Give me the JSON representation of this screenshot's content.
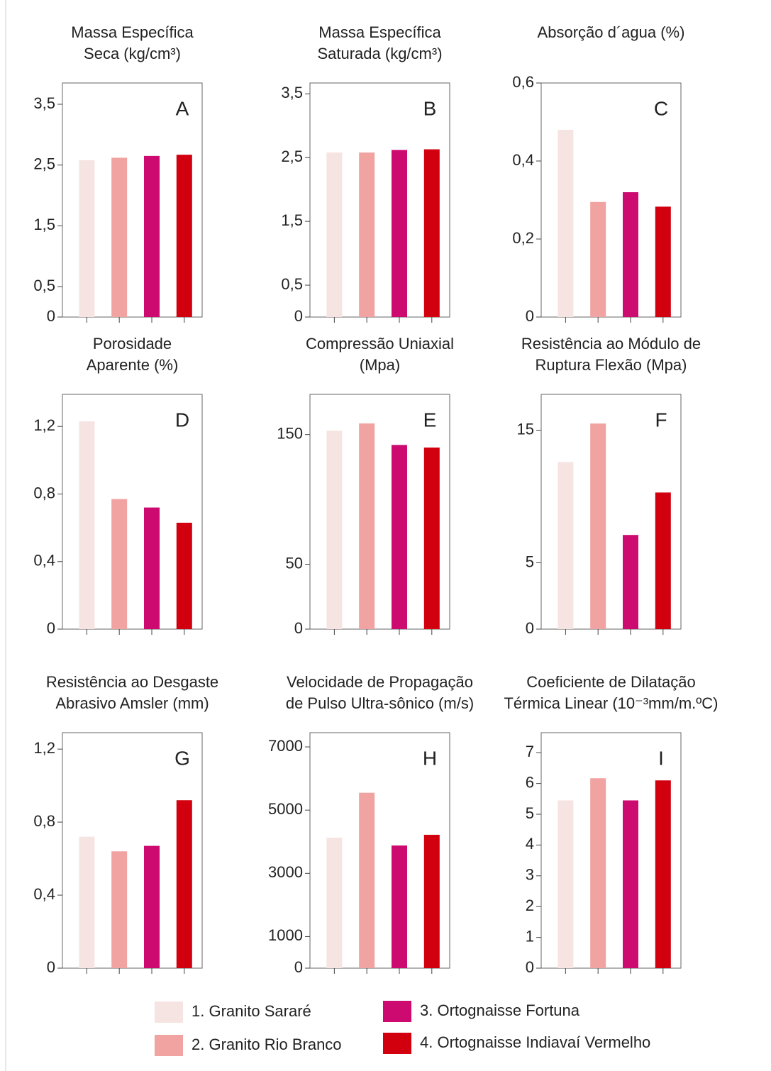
{
  "legend": {
    "items": [
      {
        "name": "1. Granito Sararé",
        "color": "#f6e4e2"
      },
      {
        "name": "2. Granito Rio Branco",
        "color": "#f0a3a0"
      },
      {
        "name": "3. Ortognaisse Fortuna",
        "color": "#cc0a70"
      },
      {
        "name": "4. Ortognaisse Indiavaí Vermelho",
        "color": "#d2000f"
      }
    ]
  },
  "chart_data": [
    {
      "type": "bar",
      "title": [
        "Massa Específica",
        "Seca (kg/cm³)"
      ],
      "label": "A",
      "values": [
        2.58,
        2.62,
        2.65,
        2.67
      ],
      "ylim": [
        0,
        3.85
      ],
      "yticks": [
        0,
        {
          "value": 0.5,
          "label": "0,5"
        },
        {
          "value": 1.5,
          "label": "1,5"
        },
        {
          "value": 2.5,
          "label": "2,5"
        },
        {
          "value": 3.5,
          "label": "3,5"
        }
      ]
    },
    {
      "type": "bar",
      "title": [
        "Massa Específica",
        "Saturada (kg/cm³)"
      ],
      "label": "B",
      "values": [
        2.58,
        2.58,
        2.62,
        2.63
      ],
      "ylim": [
        0,
        3.67
      ],
      "yticks": [
        0,
        {
          "value": 0.5,
          "label": "0,5"
        },
        {
          "value": 1.5,
          "label": "1,5"
        },
        {
          "value": 2.5,
          "label": "2,5"
        },
        {
          "value": 3.5,
          "label": "3,5"
        }
      ]
    },
    {
      "type": "bar",
      "title": [
        "Absorção d´agua (%)"
      ],
      "label": "C",
      "values": [
        0.48,
        0.295,
        0.32,
        0.283
      ],
      "ylim": [
        0,
        0.6
      ],
      "yticks": [
        0,
        {
          "value": 0.2,
          "label": "0,2"
        },
        {
          "value": 0.4,
          "label": "0,4"
        },
        {
          "value": 0.6,
          "label": "0,6"
        }
      ]
    },
    {
      "type": "bar",
      "title": [
        "Porosidade",
        "Aparente (%)"
      ],
      "label": "D",
      "values": [
        1.23,
        0.77,
        0.72,
        0.63
      ],
      "ylim": [
        0,
        1.39
      ],
      "yticks": [
        0,
        {
          "value": 0.4,
          "label": "0,4"
        },
        {
          "value": 0.8,
          "label": "0,8"
        },
        {
          "value": 1.2,
          "label": "1,2"
        }
      ]
    },
    {
      "type": "bar",
      "title": [
        "Compressão Uniaxial",
        "(Mpa)"
      ],
      "label": "E",
      "values": [
        153,
        158.6,
        142,
        140
      ],
      "ylim": [
        0,
        181
      ],
      "yticks": [
        0,
        50,
        150
      ]
    },
    {
      "type": "bar",
      "title": [
        "Resistência ao Módulo de",
        "Ruptura Flexão (Mpa)"
      ],
      "label": "F",
      "values": [
        12.6,
        15.5,
        7.1,
        10.3
      ],
      "ylim": [
        0,
        17.7
      ],
      "yticks": [
        0,
        5,
        15
      ]
    },
    {
      "type": "bar",
      "title": [
        "Resistência ao Desgaste",
        "Abrasivo Amsler (mm)"
      ],
      "label": "G",
      "values": [
        0.72,
        0.64,
        0.67,
        0.92
      ],
      "ylim": [
        0,
        1.29
      ],
      "yticks": [
        0,
        {
          "value": 0.4,
          "label": "0,4"
        },
        {
          "value": 0.8,
          "label": "0,8"
        },
        {
          "value": 1.2,
          "label": "1,2"
        }
      ]
    },
    {
      "type": "bar",
      "title": [
        "Velocidade de Propagação",
        "de Pulso Ultra-sônico (m/s)"
      ],
      "label": "H",
      "values": [
        4130,
        5550,
        3880,
        4220
      ],
      "ylim": [
        0,
        7450
      ],
      "yticks": [
        0,
        1000,
        3000,
        5000,
        7000
      ]
    },
    {
      "type": "bar",
      "title": [
        "Coeficiente de Dilatação",
        "Térmica Linear (10⁻³mm/m.ºC)"
      ],
      "label": "I",
      "values": [
        5.45,
        6.17,
        5.45,
        6.1
      ],
      "ylim": [
        0,
        7.65
      ],
      "yticks": [
        0,
        1,
        2,
        3,
        4,
        5,
        6,
        7
      ]
    }
  ]
}
